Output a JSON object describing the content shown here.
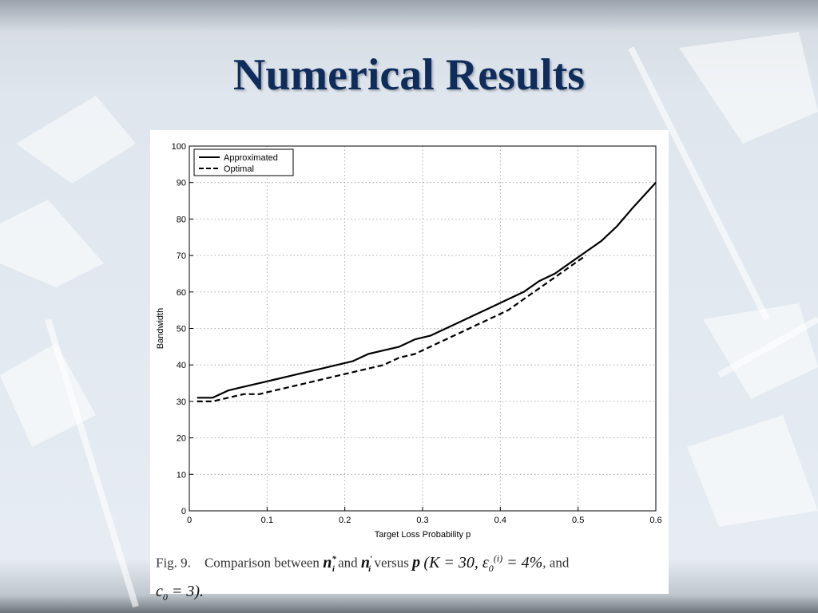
{
  "slide": {
    "title": "Numerical Results"
  },
  "caption": {
    "fig": "Fig. 9.",
    "text1": "Comparison between",
    "var1": "n",
    "var1_sup": "*",
    "var1_sub": "i",
    "and": "and",
    "var2": "n",
    "var2_sup": "′",
    "var2_sub": "i",
    "versus": "versus",
    "p": "p",
    "params": "(K = 30, ε",
    "eps_sub": "0",
    "eps_sup": "(i)",
    "params2": " = 4%",
    "and2": ", and",
    "c": "c",
    "c_sub": "0",
    "c_eq": " = 3)."
  },
  "colors": {
    "title": "#0f2d5c",
    "line": "#000000",
    "grid": "#9a9a9a"
  },
  "chart_data": {
    "type": "line",
    "title": "",
    "xlabel": "Target Loss Probability p",
    "ylabel": "Bandwidth",
    "xlim": [
      0,
      0.6
    ],
    "ylim": [
      0,
      100
    ],
    "xticks": [
      0,
      0.1,
      0.2,
      0.3,
      0.4,
      0.5,
      0.6
    ],
    "xtick_labels": [
      "0",
      "0.1",
      "0.2",
      "0.3",
      "0.4",
      "0.5",
      "0.6"
    ],
    "yticks": [
      0,
      10,
      20,
      30,
      40,
      50,
      60,
      70,
      80,
      90,
      100
    ],
    "ytick_labels": [
      "0",
      "10",
      "20",
      "30",
      "40",
      "50",
      "60",
      "70",
      "80",
      "90",
      "100"
    ],
    "grid": true,
    "legend_position": "top-left",
    "series": [
      {
        "name": "Approximated",
        "style": "solid",
        "x": [
          0.01,
          0.03,
          0.05,
          0.07,
          0.09,
          0.11,
          0.13,
          0.15,
          0.17,
          0.19,
          0.21,
          0.23,
          0.25,
          0.27,
          0.29,
          0.31,
          0.33,
          0.35,
          0.37,
          0.39,
          0.41,
          0.43,
          0.45,
          0.47,
          0.49,
          0.51,
          0.53,
          0.55,
          0.57,
          0.6
        ],
        "y": [
          31,
          31,
          33,
          34,
          35,
          36,
          37,
          38,
          39,
          40,
          41,
          43,
          44,
          45,
          47,
          48,
          50,
          52,
          54,
          56,
          58,
          60,
          63,
          65,
          68,
          71,
          74,
          78,
          83,
          90
        ]
      },
      {
        "name": "Optimal",
        "style": "dashed",
        "x": [
          0.01,
          0.03,
          0.05,
          0.07,
          0.09,
          0.11,
          0.13,
          0.15,
          0.17,
          0.19,
          0.21,
          0.23,
          0.25,
          0.27,
          0.29,
          0.31,
          0.33,
          0.35,
          0.37,
          0.39,
          0.41,
          0.43,
          0.45,
          0.47,
          0.49,
          0.51
        ],
        "y": [
          30,
          30,
          31,
          32,
          32,
          33,
          34,
          35,
          36,
          37,
          38,
          39,
          40,
          42,
          43,
          45,
          47,
          49,
          51,
          53,
          55,
          58,
          61,
          64,
          67,
          70
        ]
      }
    ]
  }
}
